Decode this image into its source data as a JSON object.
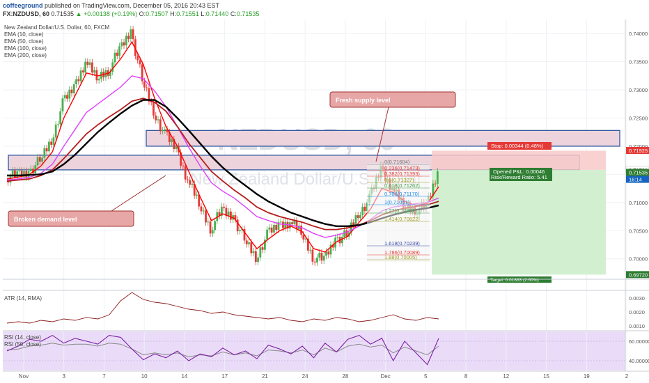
{
  "header": {
    "author": "coffeeground",
    "published": "published on TradingView.com, December 05, 2016 20:43 EST",
    "symbol": "FX:NZDUSD, 60",
    "o_label": "O:",
    "o_value": "0.71507",
    "h_label": "H:",
    "h_value": "0.71551",
    "l_label": "L:",
    "l_value": "0.71440",
    "c_label": "C:",
    "c_value": "0.71535",
    "last": "0.71535",
    "change": "+0.00138 (+0.19%)"
  },
  "main": {
    "title": "New Zealand Dollar/U.S. Dollar, 60, FXCM",
    "indicators": [
      "EMA (10, close)",
      "EMA (50, close)",
      "EMA (100, close)",
      "EMA (200, close)"
    ],
    "watermark_symbol": "NZDUSD, 60",
    "watermark_name": "New Zealand Dollar/U.S. Dollar",
    "annotations": {
      "supply": "Fresh supply level",
      "demand": "Broken demand level",
      "stop": "Stop: 0.00344 (0.48%)",
      "pnl": "Opened P&L: 0.00046",
      "rr": "Risk/Reward Ratio: 5.41",
      "target": "Target: 0.01863 (2.60%)"
    },
    "fib_levels": [
      "0(0.71604)",
      "0.236(0.71473)",
      "0.382(0.71393)",
      "0.5(0.71327)",
      "0.618(0.71262)",
      "0.786(0.71170)",
      "1(0.71051)",
      "1.27(0.70902)",
      "1.414(0.70822)",
      "1.618(0.70239)",
      "1.786(0.70089)",
      "1.88(0.70005)"
    ],
    "price_labels": [
      "0.71925",
      "0.71581",
      "0.71535",
      "16:14",
      "0.69720"
    ],
    "countdown": "16:14"
  },
  "atr": {
    "label": "ATR (14, RMA)"
  },
  "rsi": {
    "label1": "RSI (14, close)",
    "label2": "RSI (50, close)"
  },
  "colors": {
    "up": "#4caf50",
    "down": "#e53935",
    "ema10": "#ff0000",
    "ema50": "#e040fb",
    "ema100": "#b71c1c",
    "ema200": "#000000",
    "supply": "#f4cccc",
    "zone_border": "#1f4e9c"
  },
  "chart_data": [
    {
      "type": "line",
      "title": "New Zealand Dollar/U.S. Dollar, 60, FXCM",
      "x_ticks": [
        "Nov",
        "3",
        "7",
        "10",
        "14",
        "17",
        "21",
        "24",
        "28",
        "Dec",
        "5",
        "8",
        "12",
        "15",
        "19",
        "2"
      ],
      "y_ticks": [
        0.7,
        0.705,
        0.71,
        0.715,
        0.72,
        0.725,
        0.73,
        0.735,
        0.74
      ],
      "ylim": [
        0.6965,
        0.7425
      ],
      "series": [
        {
          "name": "Price",
          "values": [
            0.7145,
            0.7148,
            0.7153,
            0.7175,
            0.721,
            0.7275,
            0.7305,
            0.735,
            0.7322,
            0.7335,
            0.737,
            0.7405,
            0.7318,
            0.7262,
            0.722,
            0.7195,
            0.714,
            0.7098,
            0.7055,
            0.7085,
            0.7075,
            0.7035,
            0.7002,
            0.7042,
            0.706,
            0.7065,
            0.7048,
            0.7005,
            0.6998,
            0.7035,
            0.7042,
            0.708,
            0.7105,
            0.716,
            0.7125,
            0.7095,
            0.7088,
            0.7092,
            0.7153
          ]
        },
        {
          "name": "EMA (10, close)",
          "values": [
            0.7142,
            0.7145,
            0.715,
            0.7165,
            0.719,
            0.725,
            0.729,
            0.733,
            0.7325,
            0.733,
            0.7355,
            0.7385,
            0.7345,
            0.7285,
            0.7235,
            0.72,
            0.7155,
            0.711,
            0.7068,
            0.708,
            0.7072,
            0.7045,
            0.7018,
            0.7035,
            0.705,
            0.7058,
            0.7048,
            0.7018,
            0.7012,
            0.703,
            0.704,
            0.7065,
            0.7088,
            0.7125,
            0.7118,
            0.7102,
            0.7095,
            0.7098,
            0.7128
          ]
        },
        {
          "name": "EMA (50, close)",
          "values": [
            0.714,
            0.7142,
            0.7145,
            0.7152,
            0.7168,
            0.72,
            0.723,
            0.726,
            0.7275,
            0.729,
            0.7305,
            0.7325,
            0.732,
            0.7298,
            0.727,
            0.7235,
            0.7198,
            0.7165,
            0.7135,
            0.712,
            0.7108,
            0.7092,
            0.7075,
            0.7068,
            0.7062,
            0.706,
            0.7055,
            0.7045,
            0.7038,
            0.7042,
            0.7048,
            0.7058,
            0.707,
            0.7085,
            0.7092,
            0.7095,
            0.7098,
            0.71,
            0.7108
          ]
        },
        {
          "name": "EMA (100, close)",
          "values": [
            0.7138,
            0.714,
            0.7142,
            0.7148,
            0.7158,
            0.7178,
            0.72,
            0.7222,
            0.7238,
            0.7252,
            0.7265,
            0.728,
            0.7285,
            0.7278,
            0.7262,
            0.7235,
            0.7205,
            0.718,
            0.7155,
            0.7138,
            0.7122,
            0.7108,
            0.7092,
            0.7082,
            0.7075,
            0.707,
            0.7065,
            0.7058,
            0.7052,
            0.7052,
            0.7055,
            0.706,
            0.7068,
            0.7078,
            0.7085,
            0.709,
            0.7093,
            0.7096,
            0.7102
          ]
        },
        {
          "name": "EMA (200, close)",
          "values": [
            0.7148,
            0.7148,
            0.7149,
            0.715,
            0.7155,
            0.7168,
            0.7185,
            0.7205,
            0.7225,
            0.7242,
            0.7258,
            0.7272,
            0.7282,
            0.7282,
            0.727,
            0.725,
            0.7228,
            0.7205,
            0.7182,
            0.7162,
            0.7145,
            0.713,
            0.7115,
            0.7102,
            0.7092,
            0.7082,
            0.7075,
            0.7068,
            0.7062,
            0.7058,
            0.7058,
            0.706,
            0.7065,
            0.7072,
            0.7078,
            0.7083,
            0.7087,
            0.709,
            0.7095
          ]
        }
      ]
    },
    {
      "type": "line",
      "title": "ATR (14, RMA)",
      "y_ticks": [
        0.001,
        0.002,
        0.003
      ],
      "ylim": [
        0.0007,
        0.0035
      ],
      "series": [
        {
          "name": "ATR (14, RMA)",
          "values": [
            0.0012,
            0.0013,
            0.0012,
            0.0014,
            0.0013,
            0.0015,
            0.0014,
            0.0016,
            0.0015,
            0.0018,
            0.0028,
            0.0034,
            0.0029,
            0.0027,
            0.0026,
            0.0024,
            0.0022,
            0.0021,
            0.0019,
            0.002,
            0.0018,
            0.0017,
            0.0016,
            0.0015,
            0.0016,
            0.0014,
            0.0013,
            0.0015,
            0.0014,
            0.0016,
            0.0015,
            0.0013,
            0.0014,
            0.0016,
            0.0018,
            0.0015,
            0.0014,
            0.0016,
            0.0015
          ]
        }
      ]
    },
    {
      "type": "line",
      "title": "RSI (14, close)",
      "y_ticks": [
        40,
        60
      ],
      "ylim": [
        30,
        70
      ],
      "series": [
        {
          "name": "RSI (14, close)",
          "values": [
            50,
            55,
            62,
            60,
            66,
            58,
            63,
            60,
            57,
            66,
            64,
            52,
            41,
            47,
            43,
            50,
            40,
            47,
            44,
            53,
            46,
            50,
            42,
            56,
            52,
            47,
            55,
            43,
            58,
            49,
            62,
            66,
            57,
            63,
            40,
            60,
            48,
            36,
            63
          ]
        },
        {
          "name": "RSI (50, close)",
          "values": [
            51,
            52,
            55,
            56,
            58,
            56,
            57,
            57,
            55,
            58,
            57,
            52,
            46,
            48,
            46,
            48,
            44,
            46,
            45,
            49,
            46,
            48,
            45,
            51,
            50,
            48,
            51,
            46,
            53,
            49,
            55,
            57,
            54,
            56,
            48,
            54,
            50,
            46,
            55
          ]
        }
      ]
    }
  ]
}
